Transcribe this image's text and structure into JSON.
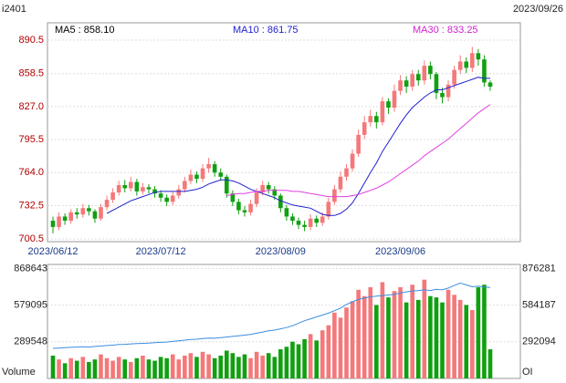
{
  "chart_data": [
    {
      "type": "candlestick",
      "title": "i2401",
      "date": "2023/09/26",
      "legend": [
        {
          "label": "MA5 : 858.10",
          "color": "#000000"
        },
        {
          "label": "MA10 : 861.75",
          "color": "#2020d0"
        },
        {
          "label": "MA30 : 833.25",
          "color": "#d020d0"
        }
      ],
      "up_color": "#f4787a",
      "down_color": "#10a010",
      "categories": [
        "2023/06/12",
        null,
        null,
        null,
        null,
        null,
        null,
        null,
        null,
        null,
        null,
        null,
        null,
        null,
        null,
        null,
        null,
        null,
        "2023/07/12",
        null,
        null,
        null,
        null,
        null,
        null,
        null,
        null,
        null,
        null,
        null,
        null,
        null,
        null,
        null,
        null,
        null,
        null,
        null,
        "2023/08/09",
        null,
        null,
        null,
        null,
        null,
        null,
        null,
        null,
        null,
        null,
        null,
        null,
        null,
        null,
        null,
        null,
        null,
        null,
        null,
        "2023/09/06",
        null,
        null,
        null,
        null,
        null,
        null,
        null,
        null,
        null,
        null,
        null,
        null,
        null,
        null,
        null
      ],
      "open": [
        718,
        712,
        722,
        718,
        726,
        724,
        730,
        727,
        720,
        731,
        738,
        745,
        752,
        749,
        755,
        746,
        750,
        748,
        744,
        740,
        736,
        742,
        748,
        756,
        762,
        758,
        768,
        772,
        764,
        760,
        744,
        736,
        728,
        726,
        734,
        745,
        752,
        748,
        742,
        730,
        722,
        718,
        714,
        712,
        720,
        716,
        722,
        736,
        748,
        760,
        768,
        782,
        800,
        812,
        818,
        812,
        832,
        826,
        842,
        852,
        846,
        858,
        852,
        866,
        858,
        840,
        836,
        848,
        862,
        870,
        864,
        878,
        872,
        850
      ],
      "high": [
        722,
        726,
        725,
        729,
        730,
        734,
        733,
        729,
        734,
        742,
        749,
        756,
        757,
        760,
        758,
        754,
        753,
        751,
        747,
        743,
        746,
        752,
        760,
        767,
        765,
        772,
        778,
        775,
        768,
        762,
        747,
        739,
        732,
        738,
        749,
        756,
        755,
        751,
        744,
        733,
        725,
        721,
        718,
        724,
        723,
        726,
        740,
        752,
        765,
        772,
        786,
        805,
        818,
        824,
        822,
        836,
        835,
        848,
        857,
        856,
        862,
        862,
        871,
        870,
        860,
        845,
        852,
        866,
        876,
        874,
        884,
        882,
        876,
        852
      ],
      "low": [
        706,
        709,
        714,
        715,
        720,
        721,
        723,
        716,
        718,
        728,
        735,
        742,
        745,
        746,
        742,
        743,
        744,
        740,
        736,
        732,
        733,
        739,
        745,
        753,
        754,
        755,
        764,
        760,
        756,
        740,
        732,
        724,
        722,
        723,
        731,
        742,
        744,
        738,
        726,
        718,
        714,
        710,
        708,
        709,
        712,
        713,
        719,
        733,
        745,
        756,
        765,
        779,
        796,
        808,
        806,
        809,
        820,
        822,
        838,
        840,
        842,
        847,
        848,
        853,
        834,
        830,
        832,
        844,
        858,
        859,
        860,
        866,
        846,
        842
      ],
      "close": [
        712,
        722,
        718,
        726,
        724,
        730,
        727,
        720,
        731,
        738,
        745,
        752,
        749,
        755,
        746,
        750,
        748,
        744,
        740,
        736,
        742,
        748,
        756,
        762,
        758,
        768,
        772,
        764,
        760,
        744,
        736,
        728,
        726,
        734,
        745,
        752,
        748,
        742,
        730,
        722,
        718,
        714,
        712,
        720,
        716,
        722,
        736,
        748,
        760,
        768,
        782,
        800,
        812,
        818,
        812,
        832,
        826,
        842,
        852,
        846,
        858,
        852,
        866,
        858,
        840,
        836,
        848,
        862,
        870,
        864,
        878,
        872,
        850,
        846
      ],
      "lines": [
        {
          "color": "#2020d0",
          "values": [
            null,
            null,
            null,
            null,
            null,
            null,
            null,
            null,
            null,
            725,
            728,
            731,
            734,
            737,
            739,
            741,
            743,
            745,
            746,
            746,
            746,
            746,
            746,
            747,
            748,
            750,
            753,
            755,
            757,
            757,
            756,
            754,
            751,
            748,
            746,
            744,
            742,
            740,
            737,
            735,
            733,
            732,
            731,
            730,
            727,
            724,
            723,
            723,
            725,
            729,
            735,
            744,
            754,
            764,
            773,
            784,
            793,
            802,
            811,
            819,
            826,
            831,
            836,
            840,
            843,
            843,
            845,
            847,
            849,
            851,
            853,
            855,
            854,
            854
          ]
        },
        {
          "color": "#e040e0",
          "values": [
            null,
            null,
            null,
            null,
            null,
            null,
            null,
            null,
            null,
            null,
            null,
            null,
            null,
            null,
            null,
            null,
            null,
            null,
            null,
            null,
            null,
            null,
            null,
            null,
            null,
            null,
            null,
            null,
            null,
            742,
            743,
            744,
            744,
            745,
            746,
            746,
            747,
            747,
            747,
            747,
            746,
            746,
            745,
            744,
            743,
            742,
            741,
            741,
            741,
            741,
            742,
            743,
            745,
            747,
            749,
            752,
            755,
            759,
            763,
            767,
            771,
            775,
            780,
            784,
            788,
            792,
            796,
            801,
            806,
            811,
            816,
            821,
            825,
            829
          ]
        }
      ],
      "ylim": [
        698,
        907
      ],
      "yticks": [
        700.5,
        732.5,
        {
          "value": 764,
          "label": "764.0"
        },
        795.5,
        {
          "value": 827,
          "label": "827.0"
        },
        858.5,
        890.5
      ],
      "grid": true
    },
    {
      "type": "bar",
      "ylabel": "Volume",
      "y2label": "OI",
      "values": [
        180000,
        150000,
        120000,
        160000,
        140000,
        170000,
        130000,
        150000,
        190000,
        160000,
        140000,
        170000,
        150000,
        130000,
        160000,
        180000,
        150000,
        140000,
        170000,
        160000,
        190000,
        150000,
        180000,
        200000,
        170000,
        210000,
        190000,
        160000,
        180000,
        220000,
        200000,
        170000,
        190000,
        160000,
        210000,
        180000,
        200000,
        170000,
        230000,
        250000,
        290000,
        270000,
        310000,
        350000,
        300000,
        380000,
        420000,
        520000,
        480000,
        560000,
        610000,
        700000,
        650000,
        720000,
        580000,
        760000,
        640000,
        690000,
        720000,
        600000,
        740000,
        620000,
        780000,
        650000,
        640000,
        600000,
        700000,
        660000,
        620000,
        580000,
        540000,
        720000,
        740000,
        230000
      ],
      "series": [
        {
          "axis": "y2",
          "color": "#3a8ee0",
          "values": [
            240000,
            242000,
            245000,
            248000,
            250000,
            252000,
            250000,
            255000,
            258000,
            262000,
            265000,
            270000,
            272000,
            275000,
            278000,
            280000,
            282000,
            285000,
            288000,
            290000,
            295000,
            300000,
            305000,
            310000,
            312000,
            318000,
            322000,
            320000,
            325000,
            330000,
            335000,
            340000,
            345000,
            350000,
            360000,
            370000,
            380000,
            385000,
            395000,
            405000,
            420000,
            440000,
            460000,
            475000,
            490000,
            505000,
            520000,
            540000,
            560000,
            590000,
            610000,
            630000,
            640000,
            650000,
            655000,
            660000,
            665000,
            670000,
            680000,
            690000,
            695000,
            700000,
            705000,
            700000,
            710000,
            705000,
            720000,
            740000,
            760000,
            745000,
            730000,
            735000,
            728000,
            725000
          ]
        }
      ],
      "ylim": [
        0,
        900000
      ],
      "yticks": [
        289548,
        579095,
        868643
      ],
      "y2lim": [
        0,
        908000
      ],
      "y2ticks": [
        292094,
        584187,
        876281
      ],
      "grid": true
    }
  ]
}
